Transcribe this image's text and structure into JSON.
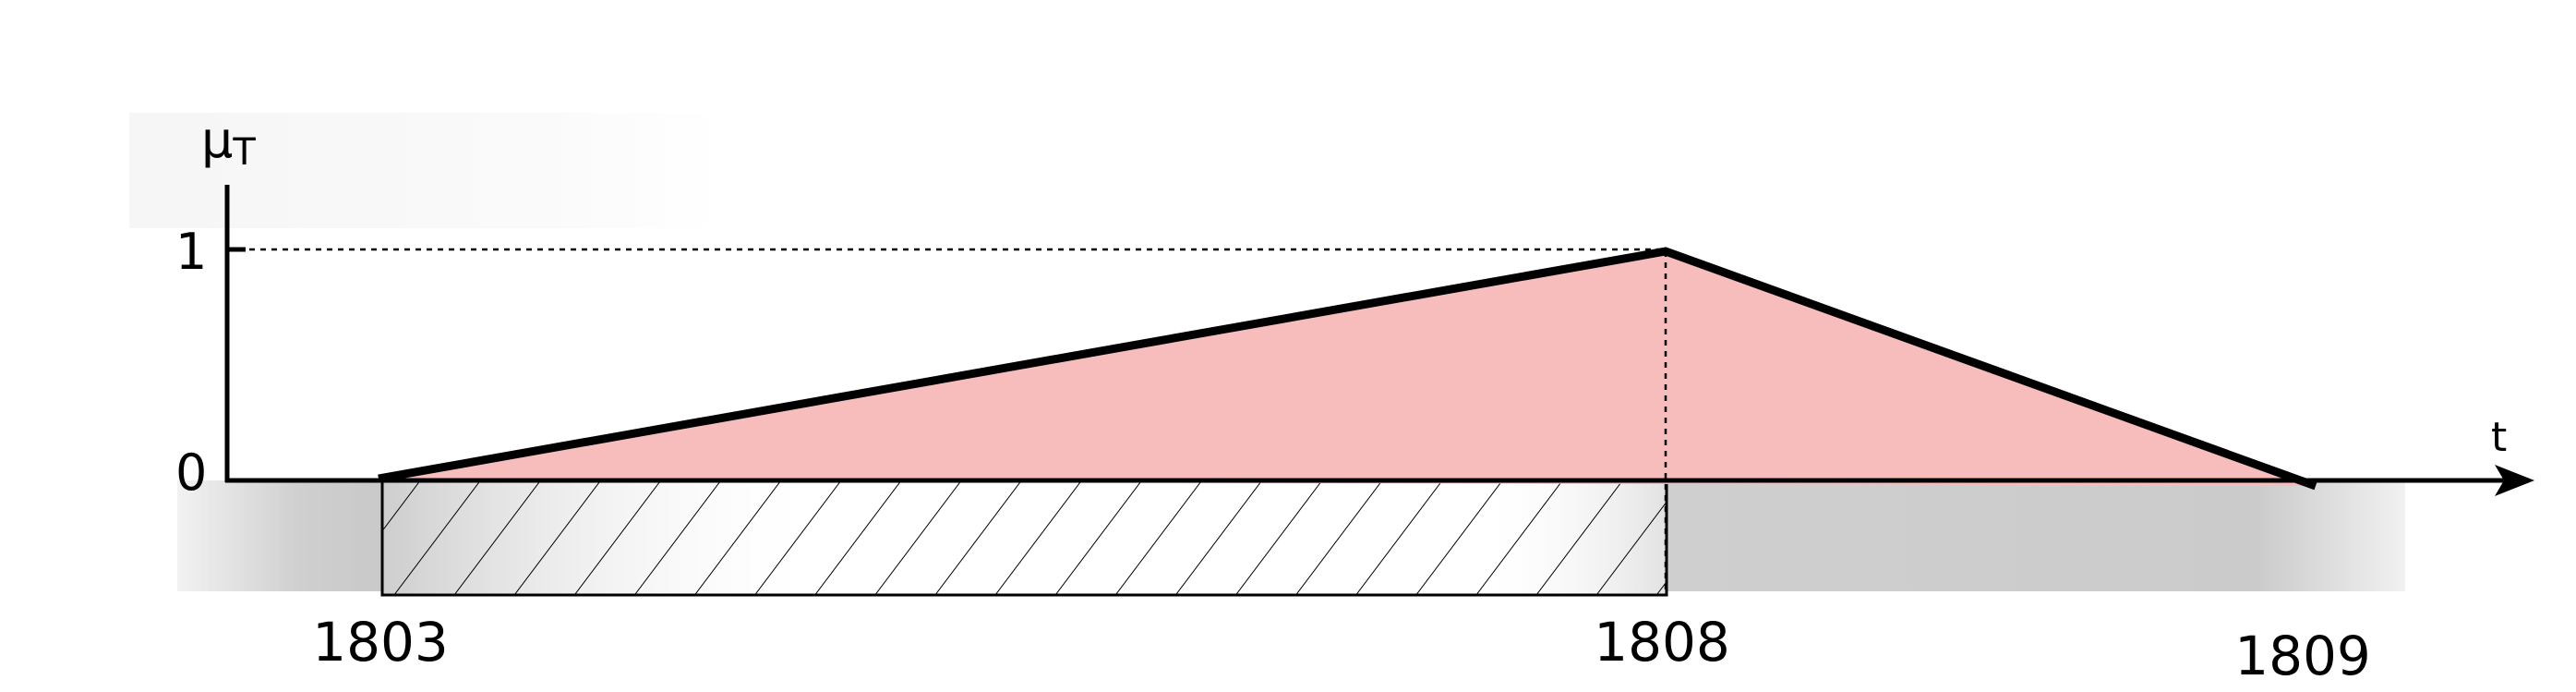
{
  "axes": {
    "y_label_main": "μ",
    "y_label_sub": "T",
    "x_label": "t",
    "y_tick_top": "1",
    "y_tick_zero": "0"
  },
  "years": {
    "start": "1803",
    "peak": "1808",
    "end": "1809"
  },
  "colors": {
    "membership_fill": "#f7bcbc",
    "axis": "#000000",
    "shadow": "#c9c9c9"
  }
}
